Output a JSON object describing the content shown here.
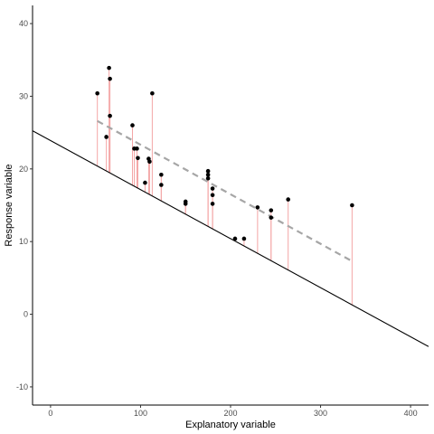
{
  "chart_data": {
    "type": "scatter",
    "xlabel": "Explanatory variable",
    "ylabel": "Response variable",
    "xlim": [
      -20,
      420
    ],
    "ylim": [
      -12.5,
      42.5
    ],
    "x_ticks": [
      0,
      100,
      200,
      300,
      400
    ],
    "y_ticks": [
      -10,
      0,
      10,
      20,
      30,
      40
    ],
    "x_tick_labels": [
      "0",
      "100",
      "200",
      "300",
      "400"
    ],
    "y_tick_labels": [
      "-10",
      "0",
      "10",
      "20",
      "30",
      "40"
    ],
    "grid": false,
    "points": [
      {
        "x": 52,
        "y": 30.4
      },
      {
        "x": 62,
        "y": 24.4
      },
      {
        "x": 65,
        "y": 33.9
      },
      {
        "x": 66,
        "y": 32.4
      },
      {
        "x": 66,
        "y": 27.3
      },
      {
        "x": 91,
        "y": 26.0
      },
      {
        "x": 93,
        "y": 22.8
      },
      {
        "x": 96,
        "y": 22.8
      },
      {
        "x": 97,
        "y": 21.5
      },
      {
        "x": 105,
        "y": 18.1
      },
      {
        "x": 109,
        "y": 21.4
      },
      {
        "x": 110,
        "y": 21.0
      },
      {
        "x": 113,
        "y": 30.4
      },
      {
        "x": 123,
        "y": 19.2
      },
      {
        "x": 123,
        "y": 17.8
      },
      {
        "x": 150,
        "y": 15.5
      },
      {
        "x": 150,
        "y": 15.2
      },
      {
        "x": 175,
        "y": 19.7
      },
      {
        "x": 175,
        "y": 19.2
      },
      {
        "x": 175,
        "y": 18.7
      },
      {
        "x": 180,
        "y": 17.3
      },
      {
        "x": 180,
        "y": 16.4
      },
      {
        "x": 180,
        "y": 15.2
      },
      {
        "x": 205,
        "y": 10.4
      },
      {
        "x": 215,
        "y": 10.4
      },
      {
        "x": 230,
        "y": 14.7
      },
      {
        "x": 245,
        "y": 14.3
      },
      {
        "x": 245,
        "y": 13.3
      },
      {
        "x": 264,
        "y": 15.8
      },
      {
        "x": 335,
        "y": 15.0
      }
    ],
    "reference_line": {
      "intercept": 23.9,
      "slope": -0.0675,
      "color": "#000000",
      "style": "solid"
    },
    "fitted_line": {
      "x_start": 52,
      "x_end": 335,
      "y_start": 26.6,
      "y_end": 7.3,
      "color": "#a6a6a6",
      "style": "dashed"
    },
    "residual_color": "#f4a6a6",
    "point_color": "#000000"
  }
}
